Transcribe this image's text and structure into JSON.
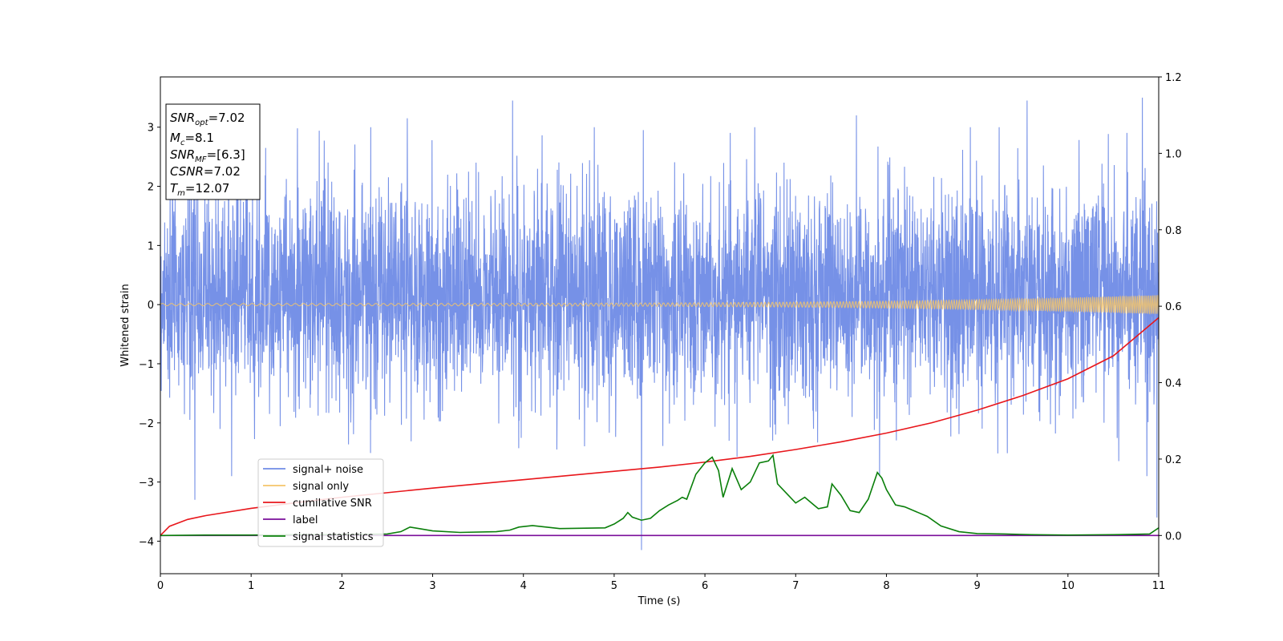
{
  "chart_data": {
    "type": "line",
    "xlabel": "Time (s)",
    "ylabel": "Whitened strain",
    "xlim": [
      0,
      11
    ],
    "ylim_left": [
      -4.55,
      3.85
    ],
    "ylim_right": [
      -0.1,
      1.2
    ],
    "x_ticks": [
      0,
      1,
      2,
      3,
      4,
      5,
      6,
      7,
      8,
      9,
      10,
      11
    ],
    "y_left_ticks": [
      3,
      2,
      1,
      0,
      -1,
      -2,
      -3,
      -4
    ],
    "y_right_ticks": [
      1.2,
      1.0,
      0.8,
      0.6,
      0.4,
      0.2,
      0.0
    ],
    "y_right_tick_labels": [
      "1.2",
      "1.0",
      "0.8",
      "0.6",
      "0.4",
      "0.2",
      "0.0"
    ],
    "grid": false,
    "legend_placement": "lower-left",
    "info_box": {
      "placement": "top-left",
      "snr_opt": "7.02",
      "mc": "8.1",
      "snr_mf": "[6.3]",
      "csnr": "7.02",
      "tm": "12.07"
    },
    "series": [
      {
        "name": "signal+ noise",
        "axis": "left",
        "color": "#6f8be6",
        "kind": "noise",
        "typical_range": [
          -2.0,
          2.4
        ],
        "extremes": [
          [
            0.38,
            -3.3
          ],
          [
            0.85,
            3.05
          ],
          [
            2.72,
            3.15
          ],
          [
            3.88,
            3.45
          ],
          [
            5.3,
            -4.15
          ],
          [
            5.32,
            2.95
          ],
          [
            6.55,
            3.0
          ],
          [
            7.67,
            3.2
          ],
          [
            9.55,
            3.45
          ],
          [
            10.82,
            3.5
          ],
          [
            10.87,
            -2.9
          ],
          [
            10.98,
            -3.6
          ]
        ]
      },
      {
        "name": "signal only",
        "axis": "left",
        "color": "#f5c46a",
        "kind": "chirp",
        "amplitude_start": 0.02,
        "amplitude_end": 0.16
      },
      {
        "name": "cumilative SNR",
        "axis": "right",
        "color": "#e8161b",
        "x": [
          0,
          0.1,
          0.3,
          0.5,
          1,
          1.5,
          2,
          2.5,
          3,
          3.5,
          4,
          4.5,
          5,
          5.5,
          6,
          6.5,
          7,
          7.5,
          8,
          8.5,
          9,
          9.5,
          10,
          10.5,
          11
        ],
        "y": [
          0.0,
          0.024,
          0.042,
          0.052,
          0.071,
          0.086,
          0.1,
          0.112,
          0.124,
          0.135,
          0.146,
          0.157,
          0.168,
          0.179,
          0.192,
          0.207,
          0.225,
          0.245,
          0.268,
          0.295,
          0.328,
          0.366,
          0.41,
          0.47,
          0.57
        ]
      },
      {
        "name": "label",
        "axis": "right",
        "color": "#7a0e9a",
        "x": [
          0,
          11
        ],
        "y": [
          0.0,
          0.0
        ]
      },
      {
        "name": "signal statistics",
        "axis": "right",
        "color": "#0a7f0a",
        "x": [
          0,
          0.5,
          1,
          1.5,
          2,
          2.5,
          2.65,
          2.75,
          2.85,
          3.0,
          3.3,
          3.7,
          3.85,
          3.95,
          4.1,
          4.4,
          4.9,
          5.0,
          5.1,
          5.15,
          5.2,
          5.3,
          5.4,
          5.5,
          5.6,
          5.7,
          5.75,
          5.8,
          5.9,
          6.0,
          6.08,
          6.15,
          6.2,
          6.3,
          6.4,
          6.5,
          6.6,
          6.7,
          6.75,
          6.8,
          6.9,
          7.0,
          7.1,
          7.25,
          7.35,
          7.4,
          7.5,
          7.6,
          7.7,
          7.8,
          7.9,
          7.95,
          8.0,
          8.1,
          8.2,
          8.25,
          8.35,
          8.45,
          8.6,
          8.8,
          9.0,
          9.3,
          9.6,
          10.0,
          10.5,
          10.9,
          11.0
        ],
        "y": [
          0.0,
          0.001,
          0.001,
          0.002,
          0.002,
          0.004,
          0.01,
          0.022,
          0.018,
          0.012,
          0.008,
          0.01,
          0.014,
          0.022,
          0.026,
          0.018,
          0.02,
          0.03,
          0.045,
          0.06,
          0.048,
          0.04,
          0.045,
          0.065,
          0.08,
          0.092,
          0.1,
          0.095,
          0.16,
          0.19,
          0.205,
          0.17,
          0.1,
          0.175,
          0.12,
          0.14,
          0.19,
          0.195,
          0.21,
          0.135,
          0.11,
          0.085,
          0.1,
          0.07,
          0.075,
          0.135,
          0.105,
          0.065,
          0.06,
          0.095,
          0.165,
          0.15,
          0.12,
          0.08,
          0.075,
          0.07,
          0.06,
          0.05,
          0.025,
          0.01,
          0.005,
          0.004,
          0.002,
          0.001,
          0.002,
          0.004,
          0.02
        ]
      }
    ]
  }
}
